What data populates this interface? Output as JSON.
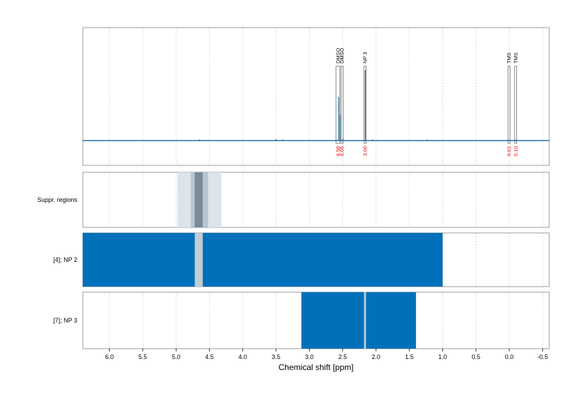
{
  "chart_data": {
    "type": "line",
    "xlabel": "Chemical shift [ppm]",
    "xlim": [
      6.4,
      -0.6
    ],
    "x_ticks": [
      "6.0",
      "5.5",
      "5.0",
      "4.5",
      "4.0",
      "3.5",
      "3.0",
      "2.5",
      "2.0",
      "1.5",
      "1.0",
      "0.5",
      "0.0",
      "-0.5"
    ],
    "x_tick_values": [
      6.0,
      5.5,
      5.0,
      4.5,
      4.0,
      3.5,
      3.0,
      2.5,
      2.0,
      1.5,
      1.0,
      0.5,
      0.0,
      -0.5
    ],
    "grid": true,
    "spectrum": {
      "color": "#1f6fa8",
      "baseline_noise": [
        {
          "x": 4.65,
          "h": 0.005
        },
        {
          "x": 3.5,
          "h": 0.01
        },
        {
          "x": 3.4,
          "h": 0.006
        },
        {
          "x": 2.05,
          "h": 0.006
        },
        {
          "x": 1.23,
          "h": 0.004
        }
      ],
      "peaks": [
        {
          "x": 2.56,
          "h": 0.48
        },
        {
          "x": 2.54,
          "h": 0.28
        },
        {
          "x": 2.5,
          "h": 0.01
        },
        {
          "x": 2.16,
          "h": 0.78
        },
        {
          "x": 0.02,
          "h": 0.005
        },
        {
          "x": -0.1,
          "h": 0.005
        }
      ]
    },
    "annotations": [
      {
        "label": "DMSO",
        "value": "6.58",
        "range": [
          2.6,
          2.54
        ]
      },
      {
        "label": "DMSO",
        "value": "0.05",
        "range": [
          2.525,
          2.505
        ]
      },
      {
        "label": "NP 3",
        "value": "3.00",
        "range": [
          2.18,
          2.15
        ]
      },
      {
        "label": "TMS",
        "value": "0.01",
        "range": [
          0.02,
          -0.005
        ]
      },
      {
        "label": "TMS",
        "value": "0.10",
        "range": [
          -0.08,
          -0.105
        ]
      }
    ],
    "annotation_colors": {
      "label": "#000000",
      "value": "#e8000b",
      "box": "#555555"
    },
    "panels": [
      {
        "label": "Suppr. regions",
        "bands": [
          {
            "range": [
              4.98,
              4.32
            ],
            "color": "#dde3ea"
          },
          {
            "range": [
              4.78,
              4.52
            ],
            "color": "#b8c4cf"
          },
          {
            "range": [
              4.72,
              4.6
            ],
            "color": "#7a8b98"
          }
        ]
      },
      {
        "label": "[4]; NP 2",
        "bands": [
          {
            "range": [
              6.4,
              1.0
            ],
            "color": "#0070bb"
          },
          {
            "range": [
              4.72,
              4.6
            ],
            "color": "#c2ccd4"
          }
        ]
      },
      {
        "label": "[7]; NP 3",
        "bands": [
          {
            "range": [
              3.12,
              1.4
            ],
            "color": "#0070bb"
          },
          {
            "range": [
              2.18,
              2.15
            ],
            "color": "#c2ccd4"
          }
        ]
      }
    ]
  }
}
